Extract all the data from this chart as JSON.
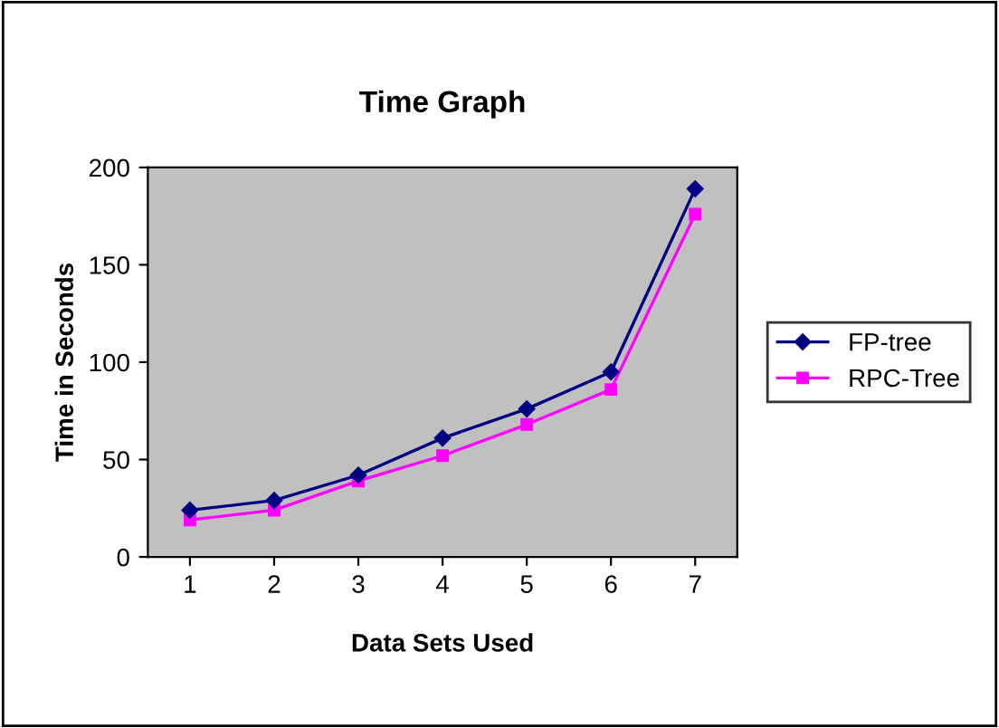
{
  "chart_data": {
    "type": "line",
    "title": "Time Graph",
    "xlabel": "Data Sets Used",
    "ylabel": "Time in Seconds",
    "categories": [
      "1",
      "2",
      "3",
      "4",
      "5",
      "6",
      "7"
    ],
    "series": [
      {
        "name": "FP-tree",
        "color": "#000080",
        "marker": "diamond",
        "values": [
          24,
          29,
          42,
          61,
          76,
          95,
          189
        ]
      },
      {
        "name": "RPC-Tree",
        "color": "#ff00ff",
        "marker": "square",
        "values": [
          19,
          24,
          39,
          52,
          68,
          86,
          176
        ]
      }
    ],
    "ylim": [
      0,
      200
    ],
    "yticks": [
      0,
      50,
      100,
      150,
      200
    ],
    "grid": false,
    "legend": "right"
  }
}
